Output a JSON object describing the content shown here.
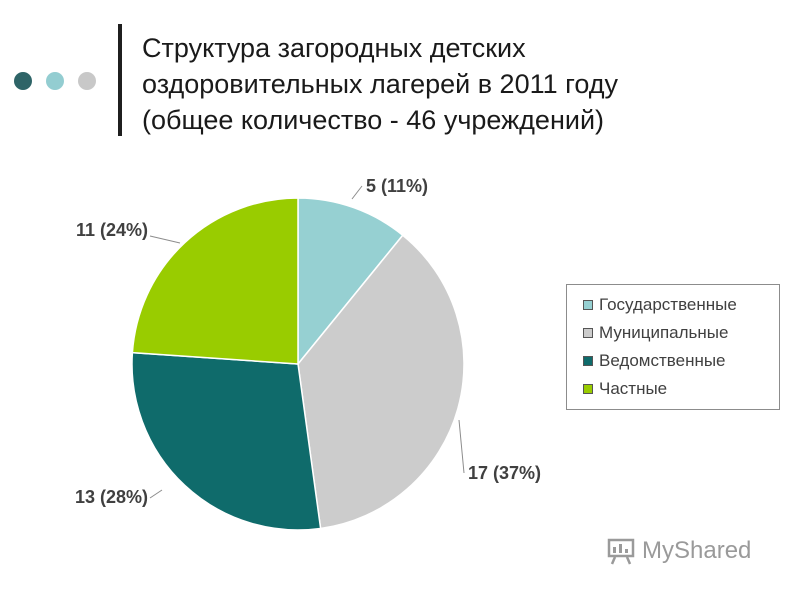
{
  "header": {
    "title_lines": [
      "Структура загородных детских",
      "оздоровительных лагерей в 2011 году",
      "(общее количество - 46 учреждений)"
    ],
    "dot_colors": [
      "#2e6467",
      "#93cdd1",
      "#c8c8c8"
    ]
  },
  "chart_data": {
    "type": "pie",
    "title": "",
    "slices": [
      {
        "name": "Государственные",
        "value": 5,
        "label": "5 (11%)",
        "color": "#96d0d2"
      },
      {
        "name": "Муниципальные",
        "value": 17,
        "label": "17 (37%)",
        "color": "#cccccc"
      },
      {
        "name": "Ведомственные",
        "value": 13,
        "label": "13 (28%)",
        "color": "#0f6b6b"
      },
      {
        "name": "Частные",
        "value": 11,
        "label": "11 (24%)",
        "color": "#99cc00"
      }
    ],
    "start": "top, clockwise",
    "legend_position": "right"
  },
  "watermark": {
    "text": "MyShared",
    "icon": "presentation-board-icon"
  }
}
